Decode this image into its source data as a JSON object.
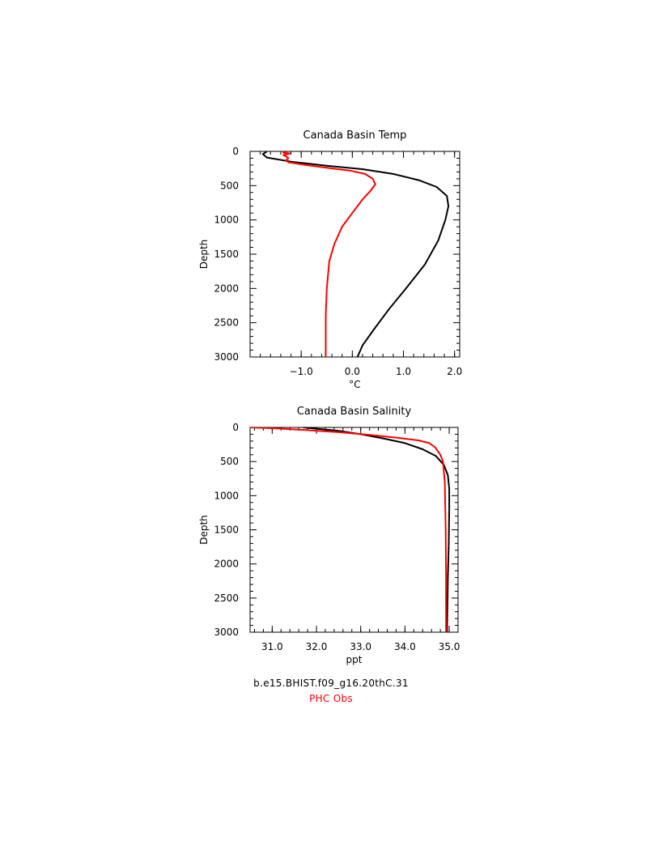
{
  "chart_data": [
    {
      "type": "line",
      "title": "Canada Basin Temp",
      "xlabel": "°C",
      "ylabel": "Depth",
      "xlim": [
        -2.0,
        2.1
      ],
      "ylim": [
        3000,
        0
      ],
      "y_inverted": true,
      "xticks": [
        -1.0,
        0.0,
        1.0,
        2.0
      ],
      "xtick_labels": [
        "−1.0",
        "0.0",
        "1.0",
        "2.0"
      ],
      "yticks": [
        0,
        500,
        1000,
        1500,
        2000,
        2500,
        3000
      ],
      "ytick_labels": [
        "0",
        "500",
        "1000",
        "1500",
        "2000",
        "2500",
        "3000"
      ],
      "grid": false,
      "series": [
        {
          "name": "b.e15.BHIST.f09_g16.20thC.31",
          "color": "#000000",
          "points": [
            [
              -1.67,
              0
            ],
            [
              -1.75,
              40
            ],
            [
              -1.67,
              90
            ],
            [
              -1.2,
              150
            ],
            [
              -0.5,
              210
            ],
            [
              0.2,
              260
            ],
            [
              0.8,
              330
            ],
            [
              1.3,
              420
            ],
            [
              1.65,
              520
            ],
            [
              1.85,
              650
            ],
            [
              1.88,
              800
            ],
            [
              1.82,
              1000
            ],
            [
              1.68,
              1300
            ],
            [
              1.42,
              1650
            ],
            [
              1.05,
              2000
            ],
            [
              0.72,
              2300
            ],
            [
              0.42,
              2600
            ],
            [
              0.2,
              2830
            ],
            [
              0.1,
              3000
            ]
          ]
        },
        {
          "name": "PHC Obs",
          "color": "#ff0000",
          "points": [
            [
              -1.28,
              0
            ],
            [
              -1.35,
              20
            ],
            [
              -1.22,
              30
            ],
            [
              -1.35,
              55
            ],
            [
              -1.3,
              70
            ],
            [
              -1.25,
              100
            ],
            [
              -1.3,
              130
            ],
            [
              -1.25,
              160
            ],
            [
              -0.9,
              200
            ],
            [
              -0.5,
              240
            ],
            [
              -0.05,
              280
            ],
            [
              0.25,
              330
            ],
            [
              0.4,
              400
            ],
            [
              0.45,
              480
            ],
            [
              0.35,
              580
            ],
            [
              0.2,
              700
            ],
            [
              0.0,
              900
            ],
            [
              -0.2,
              1100
            ],
            [
              -0.35,
              1350
            ],
            [
              -0.45,
              1600
            ],
            [
              -0.5,
              2000
            ],
            [
              -0.52,
              2400
            ],
            [
              -0.52,
              3000
            ]
          ]
        }
      ]
    },
    {
      "type": "line",
      "title": "Canada Basin Salinity",
      "xlabel": "ppt",
      "ylabel": "Depth",
      "xlim": [
        30.5,
        35.2
      ],
      "ylim": [
        3000,
        0
      ],
      "y_inverted": true,
      "xticks": [
        31.0,
        32.0,
        33.0,
        34.0,
        35.0
      ],
      "xtick_labels": [
        "31.0",
        "32.0",
        "33.0",
        "34.0",
        "35.0"
      ],
      "yticks": [
        0,
        500,
        1000,
        1500,
        2000,
        2500,
        3000
      ],
      "ytick_labels": [
        "0",
        "500",
        "1000",
        "1500",
        "2000",
        "2500",
        "3000"
      ],
      "grid": false,
      "series": [
        {
          "name": "b.e15.BHIST.f09_g16.20thC.31",
          "color": "#000000",
          "points": [
            [
              31.7,
              0
            ],
            [
              32.1,
              25
            ],
            [
              32.5,
              50
            ],
            [
              33.0,
              100
            ],
            [
              33.5,
              160
            ],
            [
              34.0,
              230
            ],
            [
              34.4,
              320
            ],
            [
              34.7,
              420
            ],
            [
              34.88,
              550
            ],
            [
              34.97,
              700
            ],
            [
              35.0,
              900
            ],
            [
              35.0,
              1200
            ],
            [
              34.99,
              1700
            ],
            [
              34.97,
              2200
            ],
            [
              34.96,
              2600
            ],
            [
              34.95,
              3000
            ]
          ]
        },
        {
          "name": "PHC Obs",
          "color": "#ff0000",
          "points": [
            [
              30.5,
              0
            ],
            [
              31.1,
              15
            ],
            [
              31.8,
              40
            ],
            [
              32.5,
              70
            ],
            [
              33.2,
              110
            ],
            [
              33.8,
              150
            ],
            [
              34.3,
              190
            ],
            [
              34.55,
              230
            ],
            [
              34.68,
              290
            ],
            [
              34.8,
              400
            ],
            [
              34.86,
              500
            ],
            [
              34.9,
              800
            ],
            [
              34.92,
              1500
            ],
            [
              34.93,
              2200
            ],
            [
              34.93,
              3000
            ]
          ]
        }
      ]
    }
  ],
  "legend": {
    "model_label": "b.e15.BHIST.f09_g16.20thC.31",
    "model_color": "#000000",
    "obs_label": "PHC Obs",
    "obs_color": "#ff0000"
  }
}
